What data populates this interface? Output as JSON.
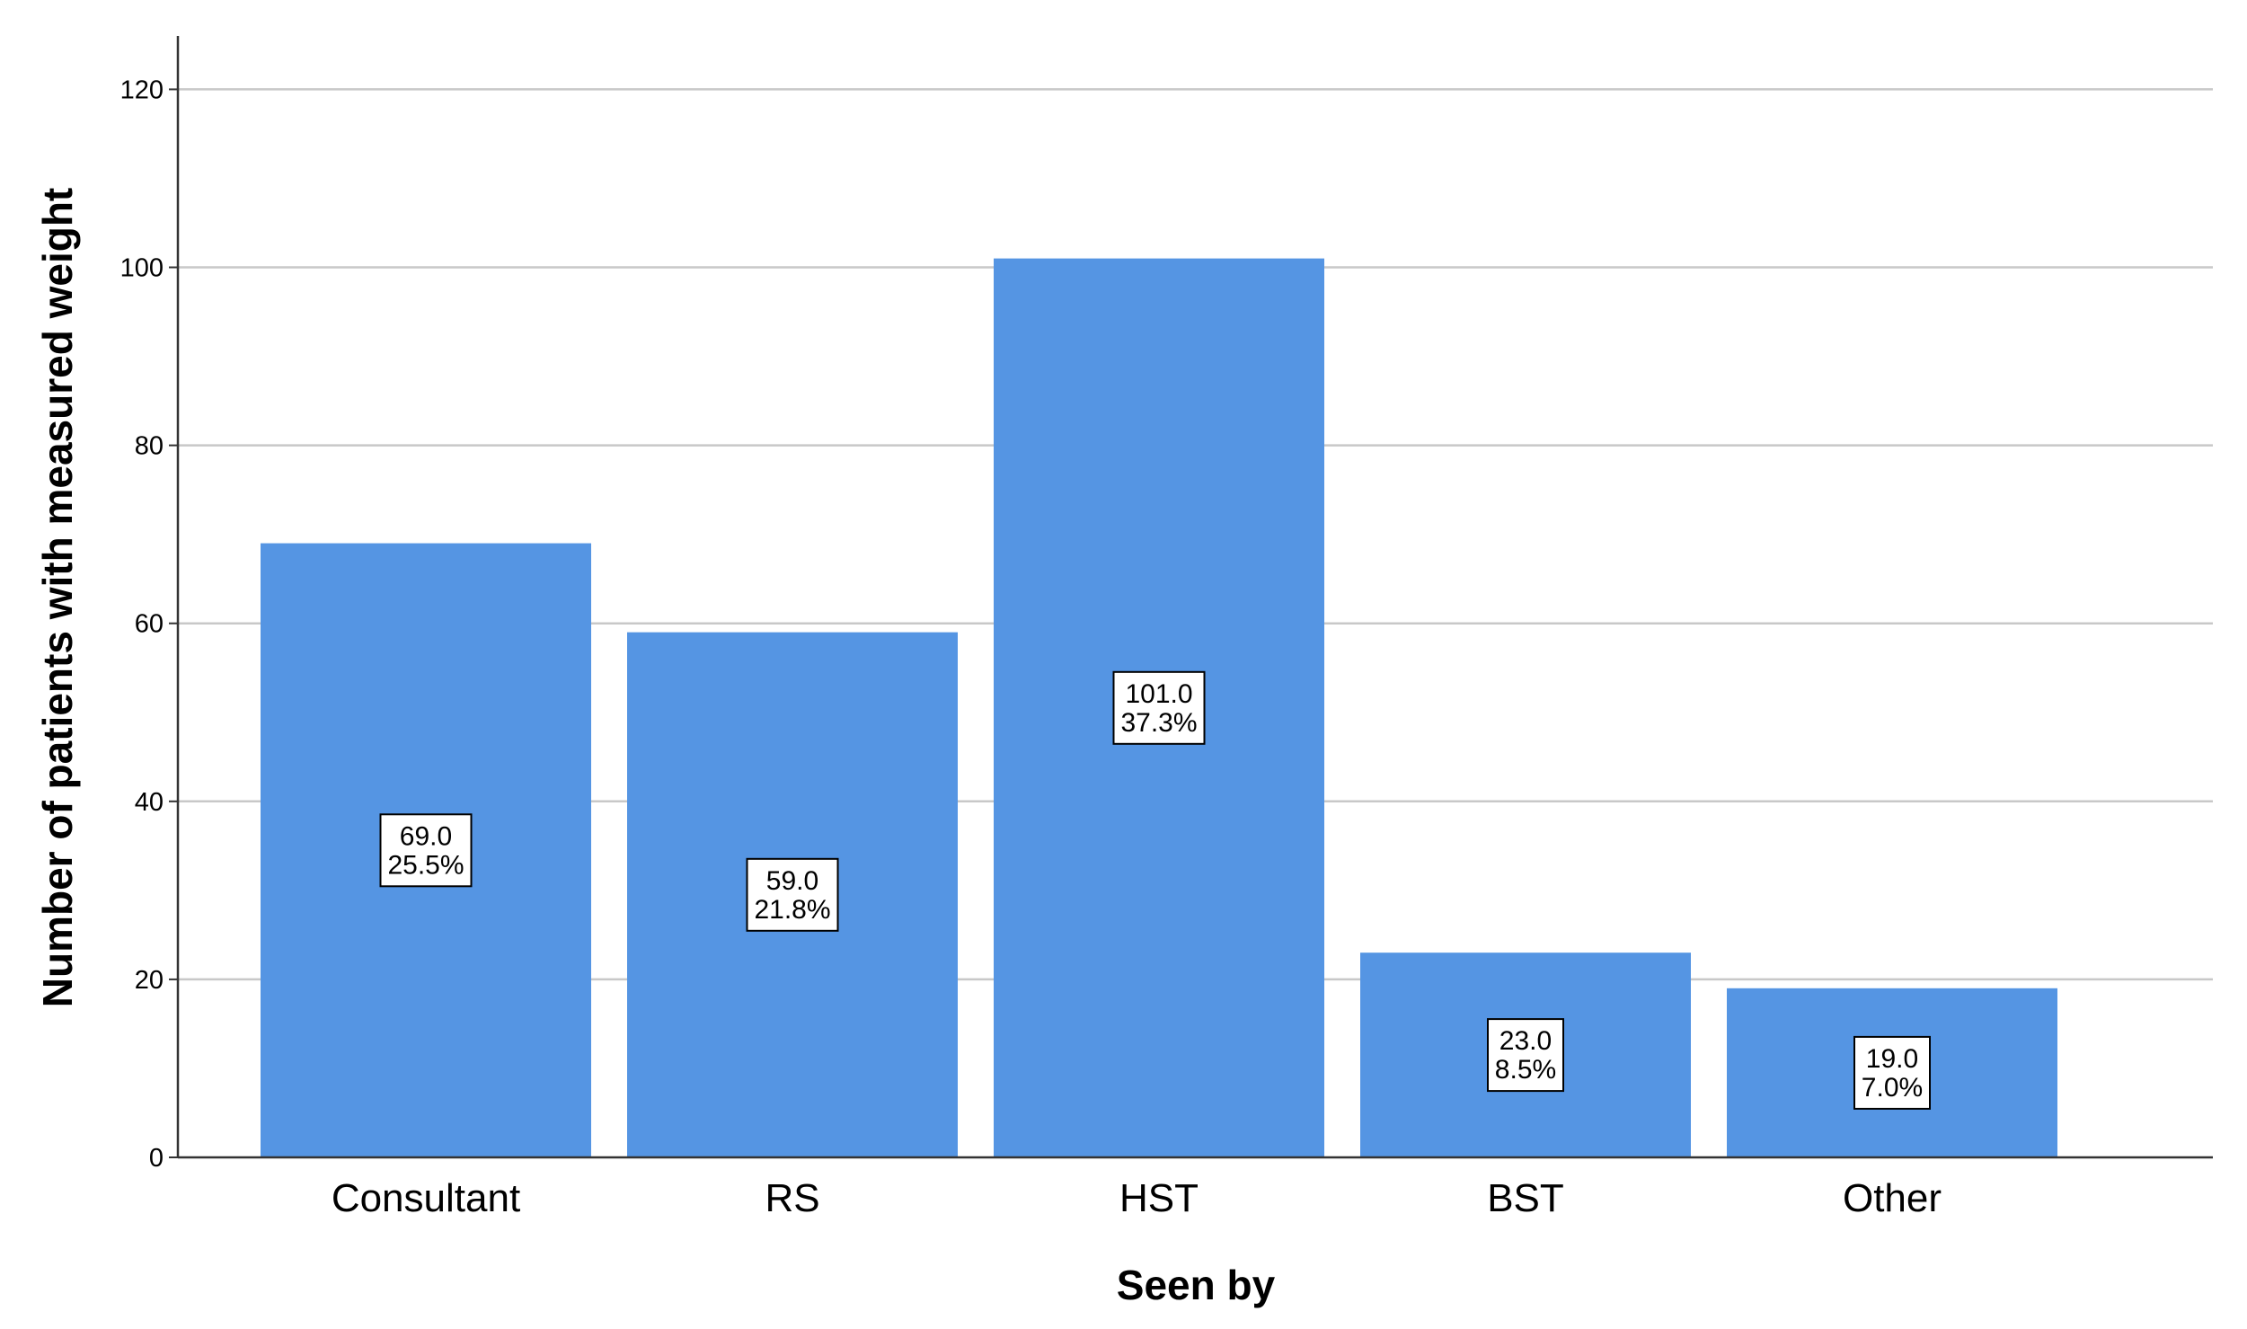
{
  "chart_data": {
    "type": "bar",
    "title": "",
    "xlabel": "Seen by",
    "ylabel": "Number of patients with measured weight",
    "categories": [
      "Consultant",
      "RS",
      "HST",
      "BST",
      "Other"
    ],
    "values": [
      69,
      59,
      101,
      23,
      19
    ],
    "value_labels": [
      "69.0",
      "59.0",
      "101.0",
      "23.0",
      "19.0"
    ],
    "percent_labels": [
      "25.5%",
      "21.8%",
      "37.3%",
      "8.5%",
      "7.0%"
    ],
    "ylim": [
      0,
      126
    ],
    "yticks": [
      0,
      20,
      40,
      60,
      80,
      100,
      120
    ],
    "grid": true,
    "legend": "none",
    "colors": {
      "bar": "#5595e3",
      "grid": "#c8c8c8",
      "axis": "#333333",
      "label_box": "#ffffff",
      "label_border": "#000000"
    }
  }
}
